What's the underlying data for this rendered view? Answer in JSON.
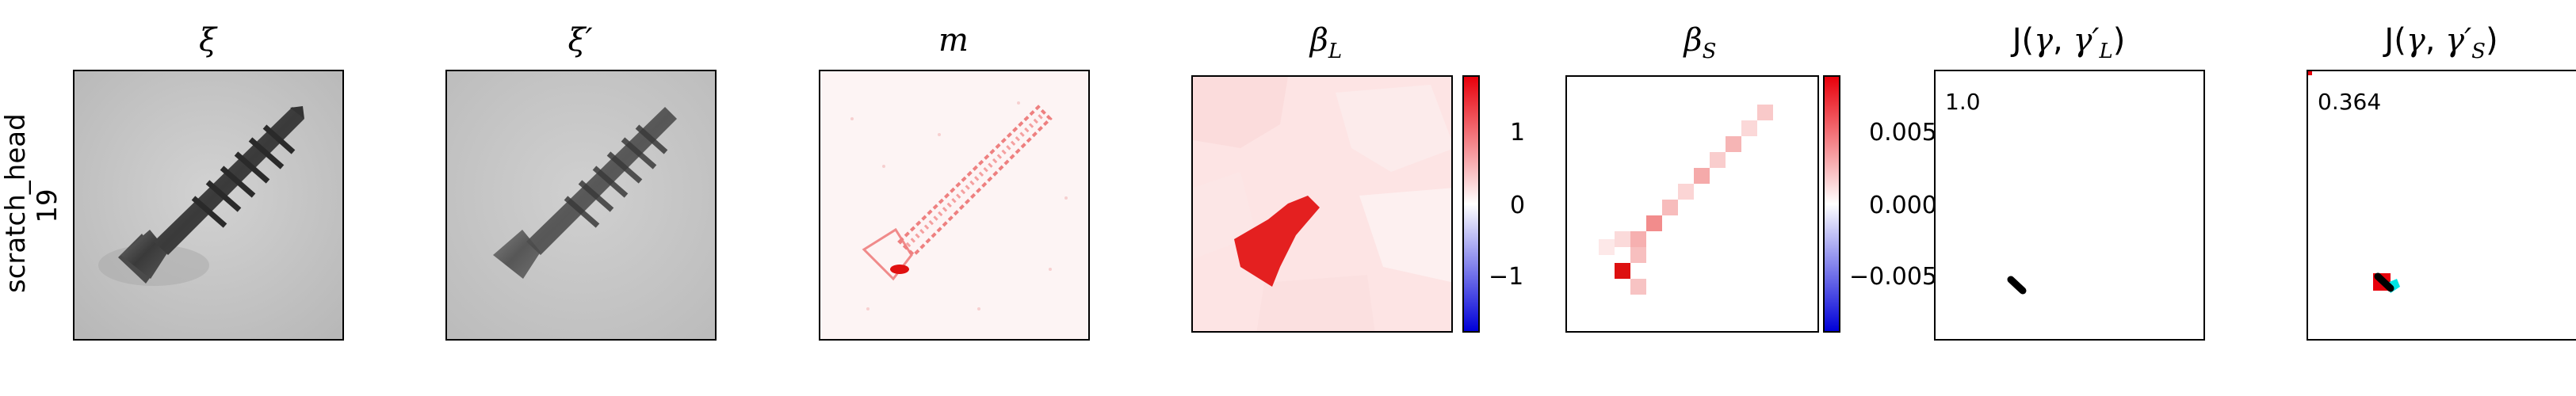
{
  "row_label": {
    "line1": "scratch_head",
    "line2": "19"
  },
  "panels": {
    "xi": {
      "title": "ξ"
    },
    "xi_prime": {
      "title": "ξ′"
    },
    "m": {
      "title": "m"
    },
    "beta_l": {
      "title_base": "β",
      "title_sub": "L"
    },
    "beta_s": {
      "title_base": "β",
      "title_sub": "S"
    },
    "j_l": {
      "title_prefix": "J(",
      "title_gamma": "γ",
      "title_sep": ", ",
      "title_gamma_prime": "γ′",
      "title_sub": "L",
      "title_suffix": ")",
      "score": "1.0"
    },
    "j_s": {
      "title_prefix": "J(",
      "title_gamma": "γ",
      "title_sep": ", ",
      "title_gamma_prime": "γ′",
      "title_sub": "S",
      "title_suffix": ")",
      "score": "0.364"
    }
  },
  "colorbar_l": {
    "ticks": [
      "1",
      "0",
      "−1"
    ],
    "top_color": "#e8000b",
    "bottom_color": "#0000d8"
  },
  "colorbar_s": {
    "ticks": [
      "0.005",
      "0.000",
      "−0.005"
    ],
    "top_color": "#e8000b",
    "bottom_color": "#0000d8"
  },
  "colors": {
    "positive": "#e8000b",
    "highlight_cyan": "#00e5e5",
    "background_gray": "#c8c8c8"
  }
}
